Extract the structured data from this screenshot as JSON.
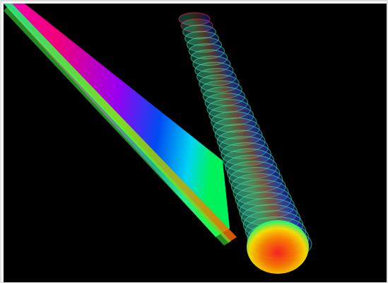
{
  "scene": {
    "background": "#000000",
    "frame_color": "#e3e3e3",
    "ribbon": {
      "description_colors": [
        "#ff0080",
        "#8000ff",
        "#0060ff",
        "#00e0ff",
        "#00ff60",
        "#c0ff00",
        "#ff4000"
      ]
    },
    "tube": {
      "ring_colors": [
        "#20c8b0",
        "#40d890",
        "#60c870",
        "#2080ff",
        "#ff4030",
        "#ffd000"
      ]
    }
  }
}
